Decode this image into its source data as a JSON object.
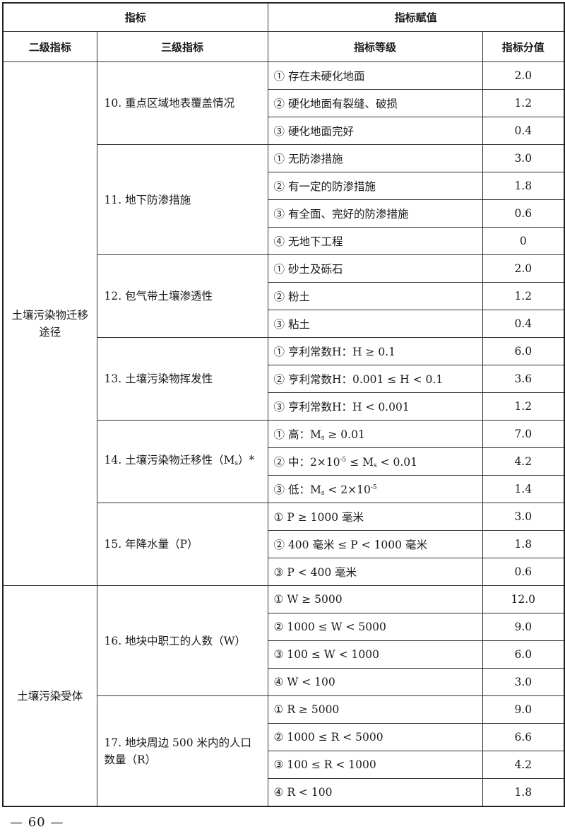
{
  "header": {
    "indicator": "指标",
    "assignment": "指标赋值",
    "level2": "二级指标",
    "level3": "三级指标",
    "grade": "指标等级",
    "score": "指标分值"
  },
  "groups": [
    {
      "name": "土壤污染物迁移途径",
      "items": [
        {
          "name": [
            [
              "t",
              "10. 重点区域地表覆盖情况"
            ]
          ],
          "grades": [
            {
              "text": [
                [
                  "t",
                  "① 存在未硬化地面"
                ]
              ],
              "score": "2.0"
            },
            {
              "text": [
                [
                  "t",
                  "② 硬化地面有裂缝、破损"
                ]
              ],
              "score": "1.2"
            },
            {
              "text": [
                [
                  "t",
                  "③ 硬化地面完好"
                ]
              ],
              "score": "0.4"
            }
          ]
        },
        {
          "name": [
            [
              "t",
              "11. 地下防渗措施"
            ]
          ],
          "grades": [
            {
              "text": [
                [
                  "t",
                  "① 无防渗措施"
                ]
              ],
              "score": "3.0"
            },
            {
              "text": [
                [
                  "t",
                  "② 有一定的防渗措施"
                ]
              ],
              "score": "1.8"
            },
            {
              "text": [
                [
                  "t",
                  "③ 有全面、完好的防渗措施"
                ]
              ],
              "score": "0.6"
            },
            {
              "text": [
                [
                  "t",
                  "④ 无地下工程"
                ]
              ],
              "score": "0"
            }
          ]
        },
        {
          "name": [
            [
              "t",
              "12. 包气带土壤渗透性"
            ]
          ],
          "grades": [
            {
              "text": [
                [
                  "t",
                  "① 砂土及砾石"
                ]
              ],
              "score": "2.0"
            },
            {
              "text": [
                [
                  "t",
                  "② 粉土"
                ]
              ],
              "score": "1.2"
            },
            {
              "text": [
                [
                  "t",
                  "③ 粘土"
                ]
              ],
              "score": "0.4"
            }
          ]
        },
        {
          "name": [
            [
              "t",
              "13. 土壤污染物挥发性"
            ]
          ],
          "grades": [
            {
              "text": [
                [
                  "t",
                  "① 亨利常数H：H ≥ 0.1"
                ]
              ],
              "score": "6.0"
            },
            {
              "text": [
                [
                  "t",
                  "② 亨利常数H：0.001 ≤ H < 0.1"
                ]
              ],
              "score": "3.6"
            },
            {
              "text": [
                [
                  "t",
                  "③ 亨利常数H：H < 0.001"
                ]
              ],
              "score": "1.2"
            }
          ]
        },
        {
          "name": [
            [
              "t",
              "14. 土壤污染物迁移性（M"
            ],
            [
              "sub",
              "s"
            ],
            [
              "t",
              "）*"
            ]
          ],
          "grades": [
            {
              "text": [
                [
                  "t",
                  "① 高：M"
                ],
                [
                  "sub",
                  "s"
                ],
                [
                  "t",
                  " ≥ 0.01"
                ]
              ],
              "score": "7.0"
            },
            {
              "text": [
                [
                  "t",
                  "② 中：2×10"
                ],
                [
                  "sup",
                  "-5"
                ],
                [
                  "t",
                  " ≤ M"
                ],
                [
                  "sub",
                  "s"
                ],
                [
                  "t",
                  " < 0.01"
                ]
              ],
              "score": "4.2"
            },
            {
              "text": [
                [
                  "t",
                  "③ 低：M"
                ],
                [
                  "sub",
                  "s"
                ],
                [
                  "t",
                  " < 2×10"
                ],
                [
                  "sup",
                  "-5"
                ]
              ],
              "score": "1.4"
            }
          ]
        },
        {
          "name": [
            [
              "t",
              "15. 年降水量（P）"
            ]
          ],
          "grades": [
            {
              "text": [
                [
                  "t",
                  "① P ≥ 1000 毫米"
                ]
              ],
              "score": "3.0"
            },
            {
              "text": [
                [
                  "t",
                  "② 400 毫米 ≤ P < 1000 毫米"
                ]
              ],
              "score": "1.8"
            },
            {
              "text": [
                [
                  "t",
                  "③ P < 400 毫米"
                ]
              ],
              "score": "0.6"
            }
          ]
        }
      ]
    },
    {
      "name": "土壤污染受体",
      "items": [
        {
          "name": [
            [
              "t",
              "16. 地块中职工的人数（W）"
            ]
          ],
          "grades": [
            {
              "text": [
                [
                  "t",
                  "① W ≥ 5000"
                ]
              ],
              "score": "12.0"
            },
            {
              "text": [
                [
                  "t",
                  "② 1000 ≤ W < 5000"
                ]
              ],
              "score": "9.0"
            },
            {
              "text": [
                [
                  "t",
                  "③ 100 ≤ W < 1000"
                ]
              ],
              "score": "6.0"
            },
            {
              "text": [
                [
                  "t",
                  "④ W < 100"
                ]
              ],
              "score": "3.0"
            }
          ]
        },
        {
          "name": [
            [
              "t",
              "17. 地块周边 500 米内的人口数量（R）"
            ]
          ],
          "grades": [
            {
              "text": [
                [
                  "t",
                  "① R ≥ 5000"
                ]
              ],
              "score": "9.0"
            },
            {
              "text": [
                [
                  "t",
                  "② 1000 ≤ R < 5000"
                ]
              ],
              "score": "6.6"
            },
            {
              "text": [
                [
                  "t",
                  "③ 100 ≤ R < 1000"
                ]
              ],
              "score": "4.2"
            },
            {
              "text": [
                [
                  "t",
                  "④ R < 100"
                ]
              ],
              "score": "1.8"
            }
          ]
        }
      ]
    }
  ],
  "footer": {
    "page": "— 60 —"
  }
}
